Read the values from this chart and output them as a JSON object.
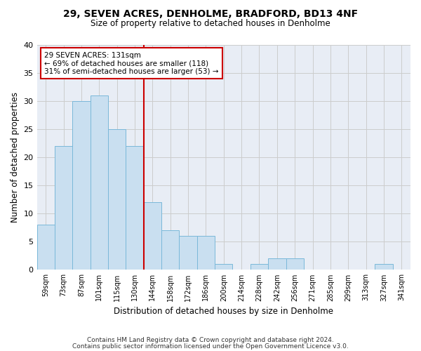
{
  "title1": "29, SEVEN ACRES, DENHOLME, BRADFORD, BD13 4NF",
  "title2": "Size of property relative to detached houses in Denholme",
  "xlabel": "Distribution of detached houses by size in Denholme",
  "ylabel": "Number of detached properties",
  "bar_labels": [
    "59sqm",
    "73sqm",
    "87sqm",
    "101sqm",
    "115sqm",
    "130sqm",
    "144sqm",
    "158sqm",
    "172sqm",
    "186sqm",
    "200sqm",
    "214sqm",
    "228sqm",
    "242sqm",
    "256sqm",
    "271sqm",
    "285sqm",
    "299sqm",
    "313sqm",
    "327sqm",
    "341sqm"
  ],
  "bar_values": [
    8,
    22,
    30,
    31,
    25,
    22,
    12,
    7,
    6,
    6,
    1,
    0,
    1,
    2,
    2,
    0,
    0,
    0,
    0,
    1,
    0
  ],
  "bar_color": "#c9dff0",
  "bar_edge_color": "#7ab8d9",
  "grid_color": "#cccccc",
  "bg_color": "#e8edf5",
  "vline_x": 5.5,
  "vline_color": "#cc0000",
  "annotation_line1": "29 SEVEN ACRES: 131sqm",
  "annotation_line2": "← 69% of detached houses are smaller (118)",
  "annotation_line3": "31% of semi-detached houses are larger (53) →",
  "annotation_box_color": "#cc0000",
  "footer1": "Contains HM Land Registry data © Crown copyright and database right 2024.",
  "footer2": "Contains public sector information licensed under the Open Government Licence v3.0.",
  "ylim": [
    0,
    40
  ],
  "yticks": [
    0,
    5,
    10,
    15,
    20,
    25,
    30,
    35,
    40
  ]
}
